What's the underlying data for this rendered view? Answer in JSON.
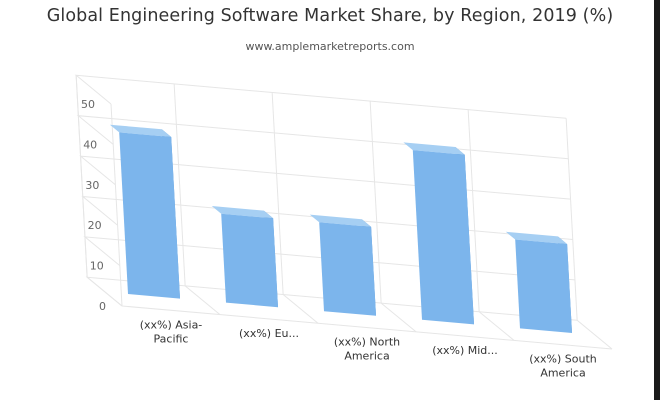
{
  "header": {
    "title": "Global Engineering Software Market Share, by Region, 2019 (%)",
    "subtitle": "www.amplemarketreports.com"
  },
  "chart_data": {
    "type": "bar",
    "title": "Global Engineering Software Market Share, by Region, 2019 (%)",
    "subtitle": "www.amplemarketreports.com",
    "categories": [
      [
        "(xx%) Asia-",
        "Pacific"
      ],
      [
        "(xx%) Eu..."
      ],
      [
        "(xx%) North",
        "America"
      ],
      [
        "(xx%) Mid..."
      ],
      [
        "(xx%) South",
        "America"
      ]
    ],
    "values": [
      40,
      22,
      22,
      42,
      22
    ],
    "ylim": [
      0,
      50
    ],
    "yticks": [
      0,
      10,
      20,
      30,
      40,
      50
    ],
    "grid": true,
    "style": "3d",
    "colors": {
      "front": "#7cb5ec",
      "side": "#5a99d6",
      "top": "#a6cff3",
      "grid": "#e6e6e6"
    }
  }
}
